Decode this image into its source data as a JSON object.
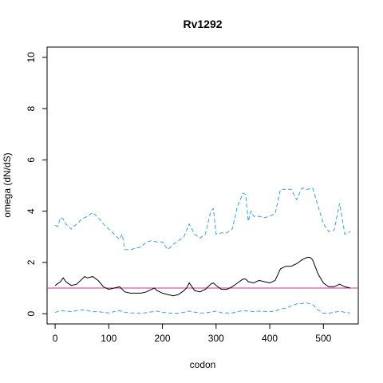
{
  "chart_data": {
    "type": "line",
    "title": "Rv1292",
    "xlabel": "codon",
    "ylabel": "omega (dN/dS)",
    "xlim": [
      -15,
      565
    ],
    "ylim": [
      -0.4,
      10.4
    ],
    "x_ticks": [
      0,
      100,
      200,
      300,
      400,
      500
    ],
    "y_ticks": [
      0,
      2,
      4,
      6,
      8,
      10
    ],
    "grid": false,
    "reference_line": {
      "y": 1.0,
      "color": "#cc3399"
    },
    "series": [
      {
        "style": "solid",
        "color": "#000000",
        "x": [
          0,
          10,
          15,
          20,
          30,
          40,
          50,
          55,
          60,
          70,
          80,
          90,
          100,
          110,
          120,
          130,
          140,
          150,
          160,
          170,
          180,
          185,
          190,
          200,
          210,
          220,
          230,
          240,
          245,
          250,
          255,
          260,
          270,
          280,
          290,
          295,
          300,
          310,
          320,
          330,
          340,
          350,
          355,
          360,
          370,
          380,
          390,
          400,
          410,
          420,
          430,
          440,
          450,
          460,
          470,
          475,
          480,
          490,
          500,
          510,
          520,
          530,
          540,
          550
        ],
        "y": [
          1.1,
          1.25,
          1.4,
          1.25,
          1.1,
          1.15,
          1.35,
          1.45,
          1.4,
          1.45,
          1.3,
          1.05,
          0.95,
          1.0,
          1.05,
          0.85,
          0.8,
          0.8,
          0.8,
          0.85,
          0.95,
          1.0,
          0.9,
          0.8,
          0.75,
          0.7,
          0.75,
          0.9,
          1.0,
          1.2,
          1.05,
          0.9,
          0.85,
          0.95,
          1.15,
          1.2,
          1.1,
          0.95,
          0.95,
          1.05,
          1.2,
          1.35,
          1.35,
          1.25,
          1.2,
          1.3,
          1.25,
          1.2,
          1.3,
          1.75,
          1.85,
          1.85,
          1.95,
          2.1,
          2.2,
          2.2,
          2.1,
          1.55,
          1.2,
          1.05,
          1.05,
          1.15,
          1.05,
          1.0
        ]
      },
      {
        "style": "dashed",
        "color": "#3aa0e0",
        "x": [
          0,
          5,
          10,
          15,
          20,
          30,
          40,
          50,
          60,
          70,
          80,
          90,
          100,
          110,
          120,
          125,
          130,
          140,
          150,
          160,
          170,
          180,
          190,
          200,
          210,
          220,
          230,
          240,
          250,
          260,
          270,
          280,
          290,
          295,
          300,
          310,
          320,
          330,
          340,
          350,
          355,
          360,
          365,
          370,
          380,
          390,
          400,
          410,
          420,
          430,
          440,
          450,
          460,
          470,
          480,
          490,
          500,
          510,
          520,
          530,
          540,
          550
        ],
        "y": [
          3.45,
          3.4,
          3.75,
          3.7,
          3.5,
          3.3,
          3.5,
          3.7,
          3.8,
          3.95,
          3.75,
          3.5,
          3.3,
          3.1,
          2.9,
          3.1,
          2.5,
          2.5,
          2.55,
          2.6,
          2.8,
          2.85,
          2.8,
          2.8,
          2.5,
          2.7,
          2.85,
          3.0,
          3.5,
          3.1,
          2.95,
          3.1,
          4.0,
          4.1,
          3.1,
          3.15,
          3.15,
          3.3,
          4.2,
          4.7,
          4.65,
          3.6,
          4.0,
          3.8,
          3.8,
          3.75,
          3.8,
          3.9,
          4.85,
          4.85,
          4.85,
          4.45,
          4.9,
          4.85,
          4.9,
          4.2,
          3.5,
          3.2,
          3.25,
          4.3,
          3.1,
          3.2
        ]
      },
      {
        "style": "dashed",
        "color": "#3aa0e0",
        "x": [
          0,
          10,
          20,
          30,
          40,
          50,
          60,
          70,
          80,
          90,
          100,
          110,
          120,
          130,
          140,
          150,
          160,
          170,
          180,
          190,
          200,
          210,
          220,
          230,
          240,
          250,
          260,
          270,
          280,
          290,
          300,
          310,
          320,
          330,
          340,
          350,
          360,
          370,
          380,
          390,
          400,
          410,
          420,
          430,
          440,
          450,
          460,
          470,
          480,
          490,
          500,
          510,
          520,
          530,
          540,
          550
        ],
        "y": [
          0.05,
          0.12,
          0.1,
          0.08,
          0.12,
          0.15,
          0.12,
          0.08,
          0.08,
          0.05,
          0.03,
          0.08,
          0.12,
          0.05,
          0.03,
          0.03,
          0.02,
          0.04,
          0.07,
          0.1,
          0.05,
          0.03,
          0.02,
          0.02,
          0.05,
          0.1,
          0.06,
          0.03,
          0.03,
          0.06,
          0.1,
          0.04,
          0.03,
          0.03,
          0.08,
          0.12,
          0.1,
          0.08,
          0.1,
          0.09,
          0.08,
          0.1,
          0.18,
          0.22,
          0.3,
          0.38,
          0.4,
          0.42,
          0.35,
          0.15,
          0.02,
          0.02,
          0.05,
          0.1,
          0.05,
          0.03
        ]
      }
    ]
  }
}
